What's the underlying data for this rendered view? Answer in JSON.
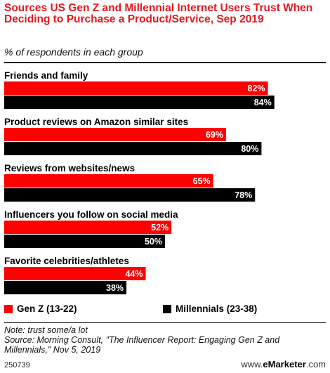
{
  "title": "Sources US Gen Z and Millennial Internet Users Trust When Deciding to Purchase a Product/Service, Sep 2019",
  "subtitle": "% of respondents in each group",
  "legend": {
    "genz": "Gen Z (13-22)",
    "millennials": "Millennials (23-38)"
  },
  "notes": {
    "note": "Note: trust some/a lot",
    "source": "Source: Morning Consult, \"The Influencer Report: Engaging Gen Z and Millennials,\" Nov 5, 2019"
  },
  "footer": {
    "id": "250739",
    "brand_prefix": "www.",
    "brand_name": "eMarketer",
    "brand_suffix": ".com"
  },
  "colors": {
    "genz": "#fd0000",
    "millennials": "#000000",
    "title": "#e8171f"
  },
  "chart_data": {
    "type": "bar",
    "orientation": "horizontal",
    "title": "Sources US Gen Z and Millennial Internet Users Trust When Deciding to Purchase a Product/Service, Sep 2019",
    "subtitle": "% of respondents in each group",
    "unit": "%",
    "categories": [
      "Friends and family",
      "Product reviews on Amazon similar sites",
      "Reviews from websites/news",
      "Influencers you follow on social media",
      "Favorite celebrities/athletes"
    ],
    "series": [
      {
        "name": "Gen Z (13-22)",
        "values": [
          82,
          69,
          65,
          52,
          44
        ]
      },
      {
        "name": "Millennials (23-38)",
        "values": [
          84,
          80,
          78,
          50,
          38
        ]
      }
    ],
    "xlim": [
      0,
      100
    ],
    "grid": false,
    "legend_position": "bottom"
  }
}
